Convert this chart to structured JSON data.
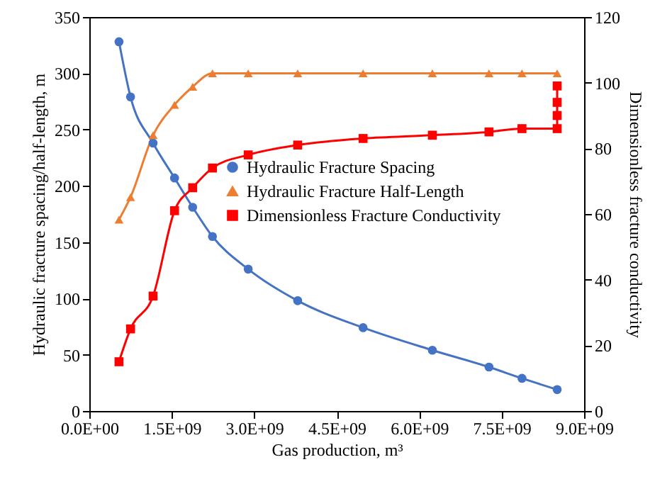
{
  "chart_data": {
    "type": "line",
    "xlabel": "Gas production, m³",
    "ylabel": "Hydraulic fracture spacing/half-length, m",
    "y2label": "Dimensionless fracture conductivity",
    "x": [
      540000000.0,
      750000000.0,
      1160000000.0,
      1550000000.0,
      1880000000.0,
      2240000000.0,
      2890000000.0,
      3790000000.0,
      4980000000.0,
      6240000000.0,
      7270000000.0,
      7870000000.0,
      8510000000.0
    ],
    "xlim": [
      0,
      9000000000.0
    ],
    "xticks": [
      {
        "value": 0,
        "label": "0.0E+00"
      },
      {
        "value": 1500000000.0,
        "label": "1.5E+09"
      },
      {
        "value": 3000000000.0,
        "label": "3.0E+09"
      },
      {
        "value": 4500000000.0,
        "label": "4.5E+09"
      },
      {
        "value": 6000000000.0,
        "label": "6.0E+09"
      },
      {
        "value": 7500000000.0,
        "label": "7.5E+09"
      },
      {
        "value": 9000000000.0,
        "label": "9.0E+09"
      }
    ],
    "ylim": [
      0,
      350
    ],
    "yticks": [
      0,
      50,
      100,
      150,
      200,
      250,
      300,
      350
    ],
    "y2lim": [
      0,
      120
    ],
    "y2ticks": [
      0,
      20,
      40,
      60,
      80,
      100,
      120
    ],
    "series": [
      {
        "name": "Hydraulic Fracture Spacing",
        "color": "#4472c4",
        "marker": "circle",
        "values": [
          328,
          279,
          238,
          207,
          181,
          155,
          126,
          98,
          74,
          54,
          39,
          29,
          19
        ]
      },
      {
        "name": "Hydraulic Fracture Half-Length",
        "color": "#ed7d31",
        "marker": "triangle",
        "values": [
          170,
          190,
          245,
          272,
          288,
          300,
          300,
          300,
          300,
          300,
          300,
          300,
          300
        ]
      },
      {
        "name": "Dimensionless Fracture Conductivity",
        "color": "#ff0000",
        "marker": "square",
        "axis": "y2",
        "x": [
          540000000.0,
          750000000.0,
          1160000000.0,
          1550000000.0,
          1880000000.0,
          2240000000.0,
          2890000000.0,
          3790000000.0,
          4980000000.0,
          6240000000.0,
          7270000000.0,
          7870000000.0,
          8510000000.0,
          8510000000.0,
          8510000000.0,
          8510000000.0
        ],
        "values": [
          15,
          25,
          35,
          61,
          68,
          74,
          78,
          81,
          83,
          84,
          85,
          86,
          86,
          90,
          94,
          99
        ]
      }
    ],
    "legend": "right",
    "grid": false
  }
}
